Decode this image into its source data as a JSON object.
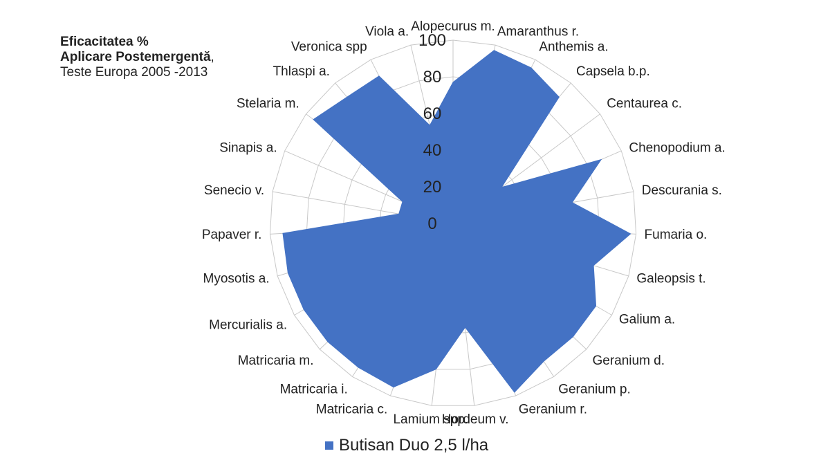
{
  "chart_data": {
    "type": "radar",
    "title_line1": "Eficacitatea %",
    "title_line2_bold": "Aplicare Postemergentă",
    "title_line2_rest": ",",
    "title_line3": "Teste Europa 2005 -2013",
    "rlim": [
      0,
      100
    ],
    "ticks": [
      "0",
      "20",
      "40",
      "60",
      "80",
      "100"
    ],
    "tick_values": [
      0,
      20,
      40,
      60,
      80,
      100
    ],
    "categories": [
      "Alopecurus m.",
      "Amaranthus r.",
      "Anthemis a.",
      "Capsela b.p.",
      "Centaurea c.",
      "Chenopodium a.",
      "Descurania s.",
      "Fumaria o.",
      "Galeopsis t.",
      "Galium a.",
      "Geranium d.",
      "Geranium p.",
      "Geranium r.",
      "Hordeum v.",
      "Lamium spp.",
      "Matricaria c.",
      "Matricaria i.",
      "Matricaria m.",
      "Mercurialis a.",
      "Myosotis a.",
      "Papaver r.",
      "Senecio v.",
      "Sinapis a.",
      "Stelaria m.",
      "Thlaspi a.",
      "Veronica spp",
      "Viola a."
    ],
    "series": [
      {
        "name": "Butisan Duo 2,5 l/ha",
        "color": "#4472c4",
        "values": [
          77,
          97,
          95,
          90,
          33,
          88,
          66,
          97,
          80,
          90,
          90,
          90,
          98,
          57,
          80,
          95,
          94,
          94,
          94,
          94,
          93,
          30,
          30,
          95,
          90,
          90,
          55
        ]
      }
    ],
    "grid": true,
    "legend_position": "bottom"
  }
}
